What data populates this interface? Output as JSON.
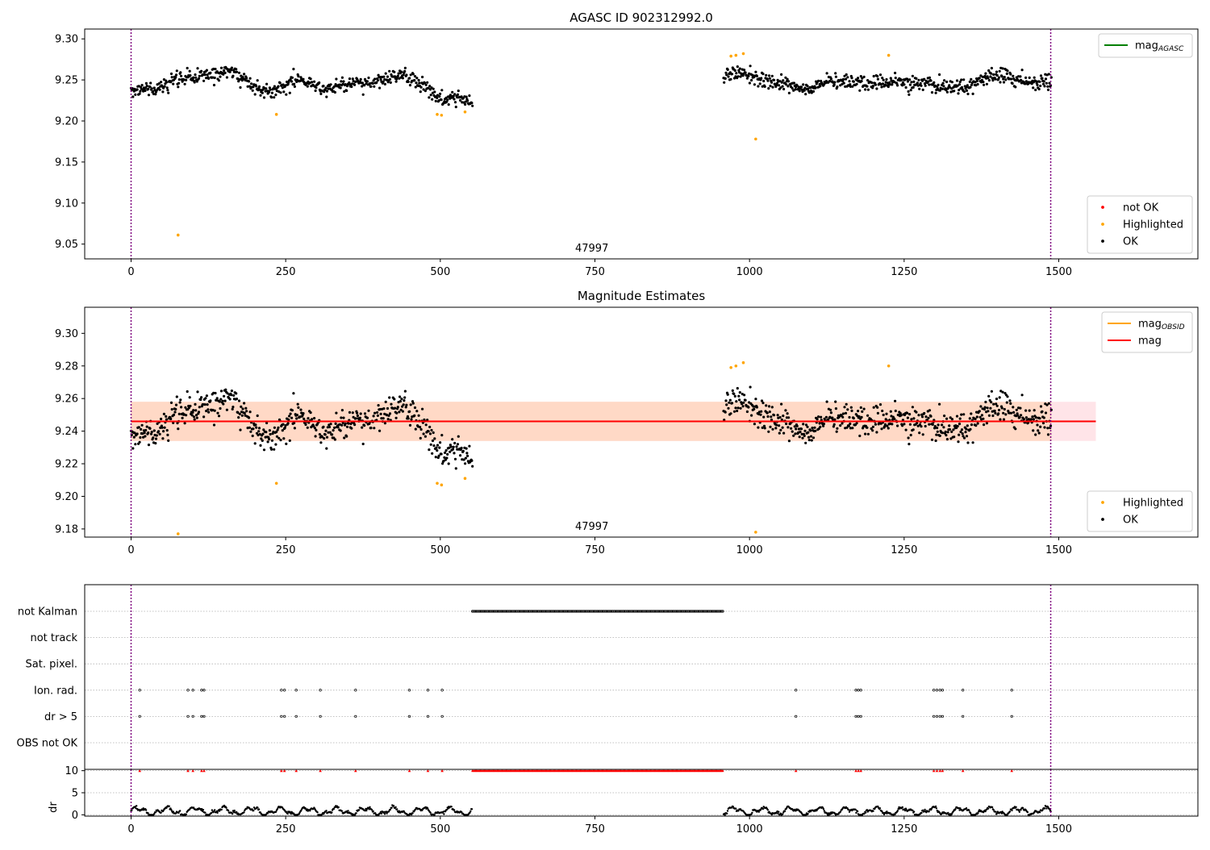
{
  "chart_data": [
    {
      "type": "scatter",
      "title": "AGASC ID 902312992.0",
      "xlabel": "",
      "ylabel": "",
      "xlim": [
        -75,
        1725
      ],
      "ylim": [
        9.032,
        9.312
      ],
      "xticks": [
        0,
        250,
        500,
        750,
        1000,
        1250,
        1500
      ],
      "yticks": [
        9.05,
        9.1,
        9.15,
        9.2,
        9.25,
        9.3
      ],
      "ytick_format": 2,
      "obsid_label": "47997",
      "obsid_label_x": 745,
      "obs_boundaries": [
        0,
        1487
      ],
      "grid": false,
      "legends": [
        {
          "placement": "upper-right",
          "entries": [
            {
              "label": "mag",
              "subscript": "AGASC",
              "kind": "line",
              "color": "#008000"
            }
          ]
        },
        {
          "placement": "lower-right",
          "entries": [
            {
              "label": "not OK",
              "kind": "point",
              "color": "#ff0000"
            },
            {
              "label": "Highlighted",
              "kind": "point",
              "color": "#ffa500"
            },
            {
              "label": "OK",
              "kind": "point",
              "color": "#000000"
            }
          ]
        }
      ],
      "series": [
        {
          "name": "OK",
          "color": "#000000",
          "segments": [
            {
              "x": [
                0,
                552
              ],
              "anchors": [
                [
                  0,
                  9.24
                ],
                [
                  40,
                  9.238
                ],
                [
                  70,
                  9.25
                ],
                [
                  110,
                  9.254
                ],
                [
                  160,
                  9.262
                ],
                [
                  200,
                  9.242
                ],
                [
                  230,
                  9.236
                ],
                [
                  270,
                  9.252
                ],
                [
                  310,
                  9.238
                ],
                [
                  350,
                  9.244
                ],
                [
                  400,
                  9.248
                ],
                [
                  440,
                  9.256
                ],
                [
                  480,
                  9.24
                ],
                [
                  500,
                  9.225
                ],
                [
                  530,
                  9.228
                ],
                [
                  552,
                  9.222
                ]
              ],
              "noise": 0.008,
              "count": 560
            },
            {
              "x": [
                958,
                1488
              ],
              "anchors": [
                [
                  958,
                  9.255
                ],
                [
                  990,
                  9.258
                ],
                [
                  1020,
                  9.25
                ],
                [
                  1060,
                  9.246
                ],
                [
                  1090,
                  9.238
                ],
                [
                  1120,
                  9.248
                ],
                [
                  1200,
                  9.246
                ],
                [
                  1250,
                  9.248
                ],
                [
                  1300,
                  9.242
                ],
                [
                  1350,
                  9.242
                ],
                [
                  1400,
                  9.258
                ],
                [
                  1440,
                  9.248
                ],
                [
                  1488,
                  9.248
                ]
              ],
              "noise": 0.008,
              "count": 540
            }
          ]
        },
        {
          "name": "Highlighted",
          "color": "#ffa500",
          "points": [
            [
              76,
              9.061
            ],
            [
              235,
              9.208
            ],
            [
              495,
              9.208
            ],
            [
              502,
              9.207
            ],
            [
              540,
              9.211
            ],
            [
              970,
              9.279
            ],
            [
              978,
              9.28
            ],
            [
              990,
              9.282
            ],
            [
              1010,
              9.178
            ],
            [
              1225,
              9.28
            ]
          ]
        }
      ],
      "band": null,
      "mean_line": null
    },
    {
      "type": "scatter",
      "title": "Magnitude Estimates",
      "xlabel": "",
      "ylabel": "",
      "xlim": [
        -75,
        1725
      ],
      "ylim": [
        9.175,
        9.316
      ],
      "xticks": [
        0,
        250,
        500,
        750,
        1000,
        1250,
        1500
      ],
      "yticks": [
        9.18,
        9.2,
        9.22,
        9.24,
        9.26,
        9.28,
        9.3
      ],
      "ytick_format": 2,
      "obsid_label": "47997",
      "obsid_label_x": 745,
      "obs_boundaries": [
        0,
        1487
      ],
      "grid": false,
      "legends": [
        {
          "placement": "upper-right",
          "entries": [
            {
              "label": "mag",
              "subscript": "OBSID",
              "kind": "line",
              "color": "#ffa500"
            },
            {
              "label": "mag",
              "kind": "line",
              "color": "#ff0000"
            }
          ]
        },
        {
          "placement": "lower-right",
          "entries": [
            {
              "label": "Highlighted",
              "kind": "point",
              "color": "#ffa500"
            },
            {
              "label": "OK",
              "kind": "point",
              "color": "#000000"
            }
          ]
        }
      ],
      "series": [
        {
          "name": "OK",
          "color": "#000000",
          "segments": [
            {
              "x": [
                0,
                552
              ],
              "anchors": [
                [
                  0,
                  9.24
                ],
                [
                  40,
                  9.238
                ],
                [
                  70,
                  9.25
                ],
                [
                  110,
                  9.254
                ],
                [
                  160,
                  9.262
                ],
                [
                  200,
                  9.242
                ],
                [
                  230,
                  9.236
                ],
                [
                  270,
                  9.252
                ],
                [
                  310,
                  9.238
                ],
                [
                  350,
                  9.244
                ],
                [
                  400,
                  9.248
                ],
                [
                  440,
                  9.256
                ],
                [
                  480,
                  9.24
                ],
                [
                  500,
                  9.225
                ],
                [
                  530,
                  9.228
                ],
                [
                  552,
                  9.222
                ]
              ],
              "noise": 0.008,
              "count": 560
            },
            {
              "x": [
                958,
                1488
              ],
              "anchors": [
                [
                  958,
                  9.255
                ],
                [
                  990,
                  9.258
                ],
                [
                  1020,
                  9.25
                ],
                [
                  1060,
                  9.246
                ],
                [
                  1090,
                  9.238
                ],
                [
                  1120,
                  9.248
                ],
                [
                  1200,
                  9.246
                ],
                [
                  1250,
                  9.248
                ],
                [
                  1300,
                  9.242
                ],
                [
                  1350,
                  9.242
                ],
                [
                  1400,
                  9.258
                ],
                [
                  1440,
                  9.248
                ],
                [
                  1488,
                  9.248
                ]
              ],
              "noise": 0.008,
              "count": 540
            }
          ]
        },
        {
          "name": "Highlighted",
          "color": "#ffa500",
          "points": [
            [
              76,
              9.177
            ],
            [
              235,
              9.208
            ],
            [
              495,
              9.208
            ],
            [
              502,
              9.207
            ],
            [
              540,
              9.211
            ],
            [
              970,
              9.279
            ],
            [
              978,
              9.28
            ],
            [
              990,
              9.282
            ],
            [
              1010,
              9.178
            ],
            [
              1225,
              9.28
            ]
          ]
        }
      ],
      "band_outer": {
        "x": [
          0,
          1560
        ],
        "y": [
          9.234,
          9.258
        ],
        "color": "#ffe4e8"
      },
      "band_inner": {
        "x": [
          0,
          1488
        ],
        "y": [
          9.234,
          9.258
        ],
        "color": "#ffd9c6"
      },
      "mean_line": {
        "x": [
          0,
          1560
        ],
        "y": 9.246,
        "color": "#ff0000"
      }
    },
    {
      "type": "scatter",
      "title": "",
      "xlim": [
        -75,
        1725
      ],
      "flag_rows": [
        "not Kalman",
        "not track",
        "Sat. pixel.",
        "Ion. rad.",
        "dr > 5",
        "OBS not OK"
      ],
      "flags": {
        "not Kalman": {
          "ranges": [
            [
              552,
              958
            ]
          ],
          "points": []
        },
        "not track": {
          "ranges": [],
          "points": []
        },
        "Sat. pixel.": {
          "ranges": [],
          "points": []
        },
        "Ion. rad.": {
          "ranges": [],
          "points": [
            14,
            92,
            100,
            114,
            118,
            243,
            248,
            267,
            306,
            363,
            450,
            480,
            503,
            1075,
            1172,
            1176,
            1180,
            1298,
            1303,
            1308,
            1312,
            1345,
            1424
          ]
        },
        "dr > 5": {
          "ranges": [],
          "points": [
            14,
            92,
            100,
            114,
            118,
            243,
            248,
            267,
            306,
            363,
            450,
            480,
            503,
            1075,
            1172,
            1176,
            1180,
            1298,
            1303,
            1308,
            1312,
            1345,
            1424
          ]
        },
        "OBS not OK": {
          "ranges": [],
          "points": []
        }
      },
      "obs_boundaries": [
        0,
        1487
      ],
      "dr": {
        "ylabel": "dr",
        "ylim": [
          -0.3,
          10.3
        ],
        "yticks": [
          0,
          5,
          10
        ],
        "clip": 10,
        "clip_color": "#ff0000",
        "segments": [
          [
            0,
            552
          ],
          [
            958,
            1488
          ]
        ],
        "clipped_points": [
          14,
          92,
          100,
          114,
          118,
          243,
          248,
          267,
          306,
          363,
          450,
          480,
          503,
          1075,
          1172,
          1176,
          1180,
          1298,
          1303,
          1308,
          1312,
          1345,
          1424
        ],
        "clipped_ranges": [
          [
            552,
            958
          ]
        ]
      },
      "xticks": [
        0,
        250,
        500,
        750,
        1000,
        1250,
        1500
      ]
    }
  ]
}
